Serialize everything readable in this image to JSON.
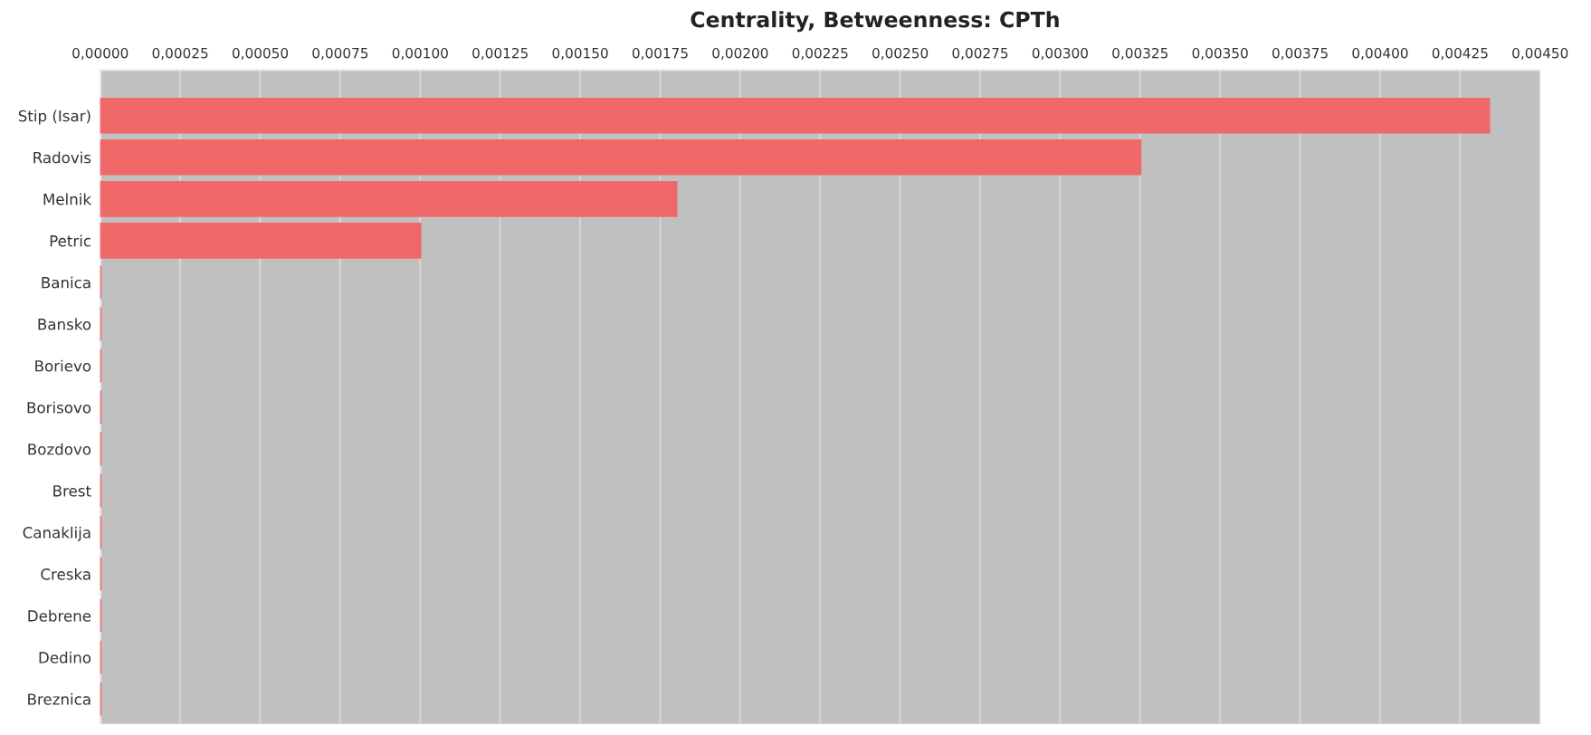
{
  "chart_data": {
    "type": "bar",
    "orientation": "horizontal",
    "title": "Centrality, Betweenness: CPTh",
    "categories": [
      "Stip (Isar)",
      "Radovis",
      "Melnik",
      "Petric",
      "Banica",
      "Bansko",
      "Borievo",
      "Borisovo",
      "Bozdovo",
      "Brest",
      "Canaklija",
      "Creska",
      "Debrene",
      "Dedino",
      "Breznica"
    ],
    "values": [
      0.00434,
      0.00325,
      0.0018,
      0.001,
      0,
      0,
      0,
      0,
      0,
      0,
      0,
      0,
      0,
      0,
      0
    ],
    "color": "#f06868",
    "xlim": [
      0,
      0.0045
    ],
    "xticks": [
      {
        "value": 0,
        "label": "0,00000"
      },
      {
        "value": 0.00025,
        "label": "0,00025"
      },
      {
        "value": 0.0005,
        "label": "0,00050"
      },
      {
        "value": 0.00075,
        "label": "0,00075"
      },
      {
        "value": 0.001,
        "label": "0,00100"
      },
      {
        "value": 0.00125,
        "label": "0,00125"
      },
      {
        "value": 0.0015,
        "label": "0,00150"
      },
      {
        "value": 0.00175,
        "label": "0,00175"
      },
      {
        "value": 0.002,
        "label": "0,00200"
      },
      {
        "value": 0.00225,
        "label": "0,00225"
      },
      {
        "value": 0.0025,
        "label": "0,00250"
      },
      {
        "value": 0.00275,
        "label": "0,00275"
      },
      {
        "value": 0.003,
        "label": "0,00300"
      },
      {
        "value": 0.00325,
        "label": "0,00325"
      },
      {
        "value": 0.0035,
        "label": "0,00350"
      },
      {
        "value": 0.00375,
        "label": "0,00375"
      },
      {
        "value": 0.004,
        "label": "0,00400"
      },
      {
        "value": 0.00425,
        "label": "0,00425"
      },
      {
        "value": 0.0045,
        "label": "0,00450"
      }
    ],
    "grid": "x"
  }
}
